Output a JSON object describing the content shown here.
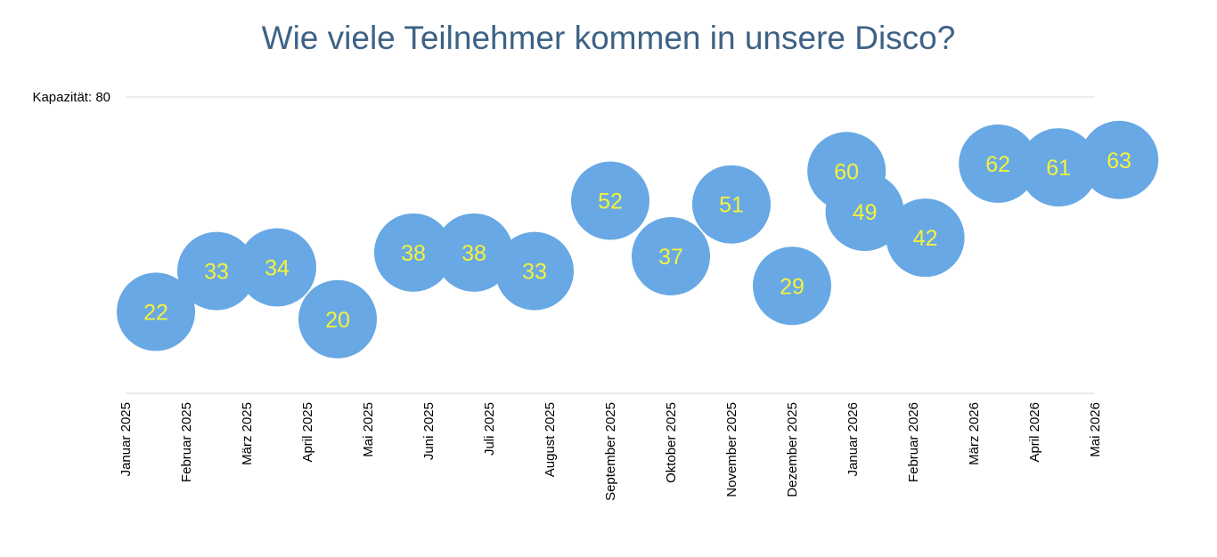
{
  "chart_data": {
    "type": "scatter",
    "title": "Wie viele Teilnehmer kommen in unsere Disco?",
    "xlabel": "",
    "ylabel": "",
    "y_reference": {
      "label": "Kapazität: 80",
      "value": 80
    },
    "ylim": [
      0,
      80
    ],
    "grid": false,
    "legend": "none",
    "x_ticks": [
      "Januar 2025",
      "Februar 2025",
      "März 2025",
      "April 2025",
      "Mai 2025",
      "Juni 2025",
      "Juli 2025",
      "August 2025",
      "September 2025",
      "Oktober 2025",
      "November 2025",
      "Dezember 2025",
      "Januar 2026",
      "Februar 2026",
      "März 2026",
      "April 2026",
      "Mai 2026"
    ],
    "points": [
      {
        "x": 0.5,
        "y": 22
      },
      {
        "x": 1.5,
        "y": 33
      },
      {
        "x": 2.5,
        "y": 34
      },
      {
        "x": 3.5,
        "y": 20
      },
      {
        "x": 4.75,
        "y": 38
      },
      {
        "x": 5.75,
        "y": 38
      },
      {
        "x": 6.75,
        "y": 33
      },
      {
        "x": 8.0,
        "y": 52
      },
      {
        "x": 9.0,
        "y": 37
      },
      {
        "x": 10.0,
        "y": 51
      },
      {
        "x": 11.0,
        "y": 29
      },
      {
        "x": 11.9,
        "y": 60
      },
      {
        "x": 12.2,
        "y": 49
      },
      {
        "x": 13.2,
        "y": 42
      },
      {
        "x": 14.4,
        "y": 62
      },
      {
        "x": 15.4,
        "y": 61
      },
      {
        "x": 16.4,
        "y": 63
      }
    ],
    "marker_color": "#68a8e4",
    "label_color": "#f4f23c",
    "title_color": "#3d6286"
  }
}
